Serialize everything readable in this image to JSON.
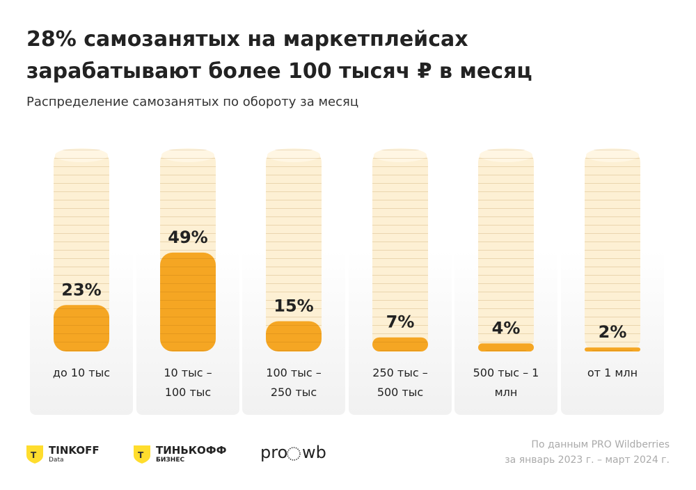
{
  "chart_data": {
    "type": "coin-stack",
    "title": "28% самозанятых на маркетплейсах зарабатывают более 100 тысяч ₽ в месяц",
    "subtitle": "Распределение самозанятых по обороту за месяц",
    "categories": [
      "до 10 тыс",
      "10 тыс – 100 тыс",
      "100 тыс – 250 тыс",
      "250 тыс – 500 тыс",
      "500 тыс – 1 млн",
      "от 1 млн"
    ],
    "values": [
      23,
      49,
      15,
      7,
      4,
      2
    ],
    "value_labels": [
      "23%",
      "49%",
      "15%",
      "7%",
      "4%",
      "2%"
    ],
    "ylim": [
      0,
      100
    ],
    "color": "#f5a623",
    "empty_color": "#fdf0d4"
  },
  "footer": {
    "logo1": {
      "name": "TINKOFF",
      "sub": "Data"
    },
    "logo2": {
      "name": "ТИНЬКОФФ",
      "sub": "БИЗНЕС"
    },
    "logo3": {
      "left": "pro",
      "right": "wb"
    },
    "source": [
      "По данным PRO Wildberries",
      "за январь 2023 г.  – март 2024 г."
    ]
  }
}
